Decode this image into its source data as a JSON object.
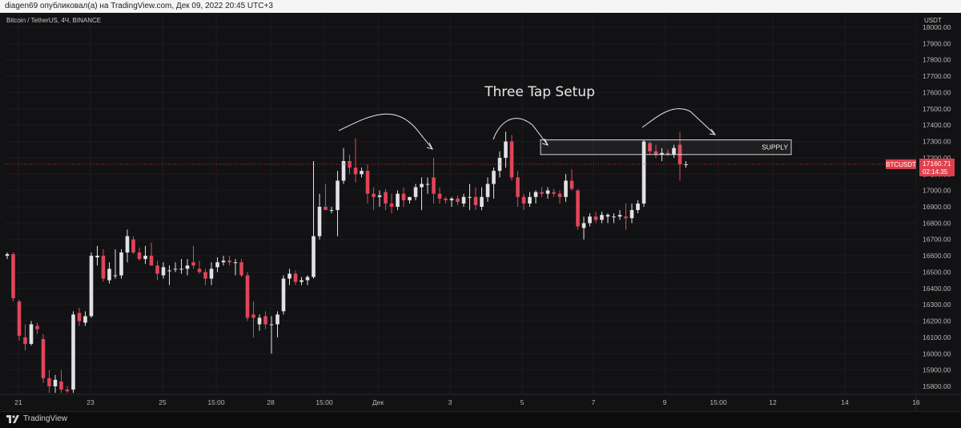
{
  "header": {
    "publisher_line": "diagen69 опубликовал(а) на TradingView.com, Дек 09, 2022 20:45 UTC+3"
  },
  "chart_header": {
    "symbol_line": "Bitcoin / TetherUS, 4Ч, BINANCE",
    "currency": "USDT"
  },
  "footer": {
    "brand": "TradingView"
  },
  "colors": {
    "background": "#121214",
    "up": "#e2e2e6",
    "down": "#e0455a",
    "grid": "#1c1c1f",
    "price_line": "#c0333a",
    "price_badge": "#e0404c",
    "annotation": "#e8e8e8"
  },
  "chart_data": {
    "type": "candlestick",
    "title": "Three Tap Setup",
    "symbol": "BTCUSDT",
    "interval": "4Ч",
    "exchange": "BINANCE",
    "ylim": [
      15760,
      18080
    ],
    "y_ticks": [
      15800,
      15900,
      16000,
      16100,
      16200,
      16300,
      16400,
      16500,
      16600,
      16700,
      16800,
      16900,
      17000,
      17100,
      17200,
      17300,
      17400,
      17500,
      17600,
      17700,
      17800,
      17900,
      18000
    ],
    "x_ticks": [
      "21",
      "23",
      "25",
      "15:00",
      "28",
      "15:00",
      "Дек",
      "3",
      "5",
      "7",
      "9",
      "15:00",
      "12",
      "14",
      "16"
    ],
    "last_price": 17160.71,
    "last_price_label": "17160.71",
    "countdown": "02:14:35",
    "candles": [
      {
        "o": 16600,
        "h": 16620,
        "l": 16580,
        "c": 16610
      },
      {
        "o": 16610,
        "h": 16620,
        "l": 16320,
        "c": 16340
      },
      {
        "o": 16320,
        "h": 16330,
        "l": 16080,
        "c": 16110
      },
      {
        "o": 16100,
        "h": 16180,
        "l": 16020,
        "c": 16060
      },
      {
        "o": 16060,
        "h": 16200,
        "l": 16050,
        "c": 16180
      },
      {
        "o": 16170,
        "h": 16190,
        "l": 16120,
        "c": 16150
      },
      {
        "o": 16090,
        "h": 16120,
        "l": 15820,
        "c": 15850
      },
      {
        "o": 15850,
        "h": 15900,
        "l": 15760,
        "c": 15800
      },
      {
        "o": 15800,
        "h": 15870,
        "l": 15760,
        "c": 15840
      },
      {
        "o": 15830,
        "h": 15900,
        "l": 15760,
        "c": 15780
      },
      {
        "o": 15780,
        "h": 15800,
        "l": 15760,
        "c": 15770
      },
      {
        "o": 15780,
        "h": 16260,
        "l": 15760,
        "c": 16240
      },
      {
        "o": 16250,
        "h": 16280,
        "l": 16170,
        "c": 16200
      },
      {
        "o": 16190,
        "h": 16260,
        "l": 16170,
        "c": 16230
      },
      {
        "o": 16230,
        "h": 16620,
        "l": 16220,
        "c": 16600
      },
      {
        "o": 16590,
        "h": 16660,
        "l": 16540,
        "c": 16600
      },
      {
        "o": 16600,
        "h": 16640,
        "l": 16440,
        "c": 16460
      },
      {
        "o": 16450,
        "h": 16560,
        "l": 16430,
        "c": 16520
      },
      {
        "o": 16480,
        "h": 16640,
        "l": 16460,
        "c": 16480
      },
      {
        "o": 16480,
        "h": 16640,
        "l": 16460,
        "c": 16620
      },
      {
        "o": 16620,
        "h": 16760,
        "l": 16560,
        "c": 16720
      },
      {
        "o": 16700,
        "h": 16720,
        "l": 16610,
        "c": 16620
      },
      {
        "o": 16620,
        "h": 16650,
        "l": 16570,
        "c": 16580
      },
      {
        "o": 16580,
        "h": 16660,
        "l": 16550,
        "c": 16600
      },
      {
        "o": 16600,
        "h": 16680,
        "l": 16540,
        "c": 16540
      },
      {
        "o": 16540,
        "h": 16570,
        "l": 16450,
        "c": 16490
      },
      {
        "o": 16480,
        "h": 16560,
        "l": 16460,
        "c": 16530
      },
      {
        "o": 16510,
        "h": 16540,
        "l": 16420,
        "c": 16510
      },
      {
        "o": 16520,
        "h": 16560,
        "l": 16500,
        "c": 16520
      },
      {
        "o": 16520,
        "h": 16580,
        "l": 16490,
        "c": 16520
      },
      {
        "o": 16520,
        "h": 16580,
        "l": 16480,
        "c": 16540
      },
      {
        "o": 16560,
        "h": 16660,
        "l": 16520,
        "c": 16540
      },
      {
        "o": 16520,
        "h": 16570,
        "l": 16490,
        "c": 16500
      },
      {
        "o": 16500,
        "h": 16520,
        "l": 16420,
        "c": 16460
      },
      {
        "o": 16460,
        "h": 16560,
        "l": 16420,
        "c": 16520
      },
      {
        "o": 16530,
        "h": 16590,
        "l": 16500,
        "c": 16560
      },
      {
        "o": 16560,
        "h": 16600,
        "l": 16540,
        "c": 16570
      },
      {
        "o": 16570,
        "h": 16600,
        "l": 16540,
        "c": 16560
      },
      {
        "o": 16560,
        "h": 16580,
        "l": 16480,
        "c": 16560
      },
      {
        "o": 16560,
        "h": 16580,
        "l": 16470,
        "c": 16480
      },
      {
        "o": 16480,
        "h": 16500,
        "l": 16200,
        "c": 16220
      },
      {
        "o": 16240,
        "h": 16320,
        "l": 16100,
        "c": 16220
      },
      {
        "o": 16180,
        "h": 16240,
        "l": 16140,
        "c": 16220
      },
      {
        "o": 16230,
        "h": 16260,
        "l": 16150,
        "c": 16180
      },
      {
        "o": 16180,
        "h": 16230,
        "l": 16000,
        "c": 16180
      },
      {
        "o": 16180,
        "h": 16260,
        "l": 16100,
        "c": 16240
      },
      {
        "o": 16260,
        "h": 16480,
        "l": 16240,
        "c": 16460
      },
      {
        "o": 16460,
        "h": 16520,
        "l": 16420,
        "c": 16490
      },
      {
        "o": 16490,
        "h": 16510,
        "l": 16420,
        "c": 16440
      },
      {
        "o": 16440,
        "h": 16470,
        "l": 16420,
        "c": 16450
      },
      {
        "o": 16450,
        "h": 16480,
        "l": 16420,
        "c": 16470
      },
      {
        "o": 16470,
        "h": 17180,
        "l": 16460,
        "c": 16720
      },
      {
        "o": 16720,
        "h": 16980,
        "l": 16700,
        "c": 16900
      },
      {
        "o": 16900,
        "h": 17040,
        "l": 16880,
        "c": 16880
      },
      {
        "o": 16880,
        "h": 16900,
        "l": 16860,
        "c": 16880
      },
      {
        "o": 16880,
        "h": 17120,
        "l": 16720,
        "c": 17060
      },
      {
        "o": 17060,
        "h": 17260,
        "l": 17040,
        "c": 17180
      },
      {
        "o": 17180,
        "h": 17220,
        "l": 17100,
        "c": 17140
      },
      {
        "o": 17140,
        "h": 17320,
        "l": 17050,
        "c": 17100
      },
      {
        "o": 17100,
        "h": 17140,
        "l": 17080,
        "c": 17120
      },
      {
        "o": 17120,
        "h": 17160,
        "l": 16920,
        "c": 16980
      },
      {
        "o": 16980,
        "h": 17020,
        "l": 16880,
        "c": 16960
      },
      {
        "o": 16960,
        "h": 17000,
        "l": 16900,
        "c": 16970
      },
      {
        "o": 16990,
        "h": 17010,
        "l": 16880,
        "c": 16920
      },
      {
        "o": 16920,
        "h": 16980,
        "l": 16860,
        "c": 16900
      },
      {
        "o": 16900,
        "h": 17000,
        "l": 16880,
        "c": 16980
      },
      {
        "o": 16980,
        "h": 17020,
        "l": 16900,
        "c": 16940
      },
      {
        "o": 16940,
        "h": 16960,
        "l": 16920,
        "c": 16960
      },
      {
        "o": 16960,
        "h": 17040,
        "l": 16940,
        "c": 17020
      },
      {
        "o": 17020,
        "h": 17080,
        "l": 16880,
        "c": 17040
      },
      {
        "o": 17040,
        "h": 17080,
        "l": 16980,
        "c": 17040
      },
      {
        "o": 17080,
        "h": 17200,
        "l": 16920,
        "c": 16980
      },
      {
        "o": 16980,
        "h": 17020,
        "l": 16920,
        "c": 16950
      },
      {
        "o": 16950,
        "h": 16960,
        "l": 16920,
        "c": 16940
      },
      {
        "o": 16940,
        "h": 16960,
        "l": 16900,
        "c": 16950
      },
      {
        "o": 16950,
        "h": 16970,
        "l": 16910,
        "c": 16930
      },
      {
        "o": 16920,
        "h": 16980,
        "l": 16900,
        "c": 16960
      },
      {
        "o": 16960,
        "h": 17040,
        "l": 16880,
        "c": 16960
      },
      {
        "o": 16960,
        "h": 17020,
        "l": 16880,
        "c": 16910
      },
      {
        "o": 16900,
        "h": 17020,
        "l": 16880,
        "c": 16960
      },
      {
        "o": 16960,
        "h": 17080,
        "l": 16930,
        "c": 17040
      },
      {
        "o": 17040,
        "h": 17140,
        "l": 16950,
        "c": 17120
      },
      {
        "o": 17120,
        "h": 17240,
        "l": 17080,
        "c": 17200
      },
      {
        "o": 17200,
        "h": 17360,
        "l": 17140,
        "c": 17300
      },
      {
        "o": 17300,
        "h": 17340,
        "l": 17060,
        "c": 17080
      },
      {
        "o": 17080,
        "h": 17120,
        "l": 16900,
        "c": 16960
      },
      {
        "o": 16960,
        "h": 16980,
        "l": 16880,
        "c": 16920
      },
      {
        "o": 16920,
        "h": 16990,
        "l": 16900,
        "c": 16960
      },
      {
        "o": 16960,
        "h": 17000,
        "l": 16920,
        "c": 16990
      },
      {
        "o": 16990,
        "h": 17020,
        "l": 16960,
        "c": 16980
      },
      {
        "o": 16980,
        "h": 17020,
        "l": 16950,
        "c": 17000
      },
      {
        "o": 16990,
        "h": 17010,
        "l": 16960,
        "c": 16980
      },
      {
        "o": 16980,
        "h": 17000,
        "l": 16920,
        "c": 16960
      },
      {
        "o": 16960,
        "h": 17100,
        "l": 16930,
        "c": 17060
      },
      {
        "o": 17060,
        "h": 17130,
        "l": 17000,
        "c": 17010
      },
      {
        "o": 17000,
        "h": 17010,
        "l": 16760,
        "c": 16780
      },
      {
        "o": 16770,
        "h": 16840,
        "l": 16700,
        "c": 16800
      },
      {
        "o": 16800,
        "h": 16860,
        "l": 16780,
        "c": 16840
      },
      {
        "o": 16840,
        "h": 16870,
        "l": 16800,
        "c": 16820
      },
      {
        "o": 16820,
        "h": 16870,
        "l": 16800,
        "c": 16850
      },
      {
        "o": 16840,
        "h": 16860,
        "l": 16800,
        "c": 16850
      },
      {
        "o": 16840,
        "h": 16860,
        "l": 16800,
        "c": 16840
      },
      {
        "o": 16840,
        "h": 16880,
        "l": 16820,
        "c": 16850
      },
      {
        "o": 16840,
        "h": 16920,
        "l": 16760,
        "c": 16830
      },
      {
        "o": 16830,
        "h": 16920,
        "l": 16800,
        "c": 16880
      },
      {
        "o": 16880,
        "h": 16940,
        "l": 16860,
        "c": 16920
      },
      {
        "o": 16920,
        "h": 17310,
        "l": 16900,
        "c": 17300
      },
      {
        "o": 17290,
        "h": 17300,
        "l": 17220,
        "c": 17240
      },
      {
        "o": 17240,
        "h": 17280,
        "l": 17200,
        "c": 17220
      },
      {
        "o": 17220,
        "h": 17260,
        "l": 17180,
        "c": 17230
      },
      {
        "o": 17230,
        "h": 17250,
        "l": 17210,
        "c": 17220
      },
      {
        "o": 17220,
        "h": 17280,
        "l": 17200,
        "c": 17260
      },
      {
        "o": 17280,
        "h": 17360,
        "l": 17060,
        "c": 17160
      },
      {
        "o": 17160,
        "h": 17180,
        "l": 17140,
        "c": 17160
      }
    ],
    "supply_zone": {
      "label": "SUPPLY",
      "y_low": 17220,
      "y_high": 17310
    },
    "x_positions": [
      "21",
      "23",
      "25",
      "15:00",
      "28",
      "15:00",
      "Дек",
      "3",
      "5",
      "7",
      "9",
      "15:00",
      "12",
      "14",
      "16"
    ]
  }
}
